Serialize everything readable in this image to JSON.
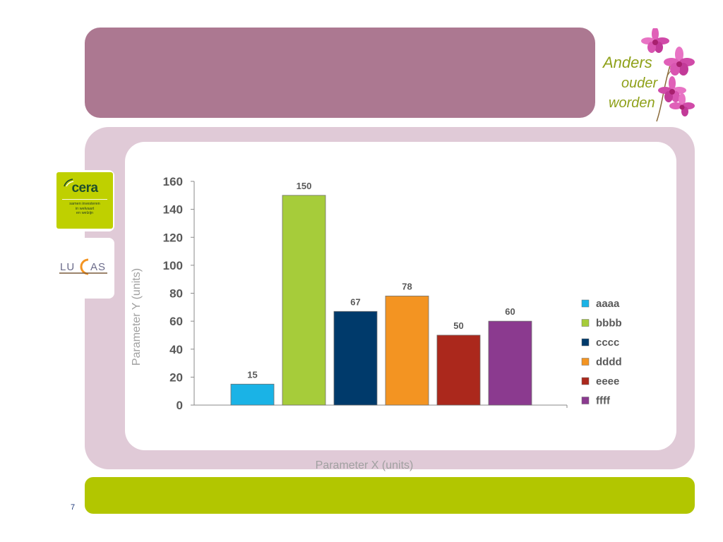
{
  "slide": {
    "page_number": "7",
    "title_band_color": "#ac7891",
    "footer_band_color": "#b2c600",
    "frame_color": "#e0cad7"
  },
  "logos": {
    "anders": {
      "line1": "Anders",
      "line2": "ouder",
      "line3": "worden",
      "icon": "orchid-flower"
    },
    "cera": {
      "name": "cera",
      "tagline_1": "samen investeren",
      "tagline_2": "in welvaart",
      "tagline_3": "en welzijn",
      "background": "#bfd000"
    },
    "lucas": {
      "text_left": "LU",
      "text_right": "AS"
    }
  },
  "chart_data": {
    "type": "bar",
    "categories": [
      "aaaa",
      "bbbb",
      "cccc",
      "dddd",
      "eeee",
      "ffff"
    ],
    "values": [
      15,
      150,
      67,
      78,
      50,
      60
    ],
    "colors": [
      "#1ab3e6",
      "#a6cc3a",
      "#003a6b",
      "#f39422",
      "#ab281c",
      "#8b3a8f"
    ],
    "data_labels": [
      "15",
      "150",
      "67",
      "78",
      "50",
      "60"
    ],
    "xlabel": "Parameter X (units)",
    "ylabel": "Parameter Y (units)",
    "ylim": [
      0,
      160
    ],
    "yticks": [
      0,
      20,
      40,
      60,
      80,
      100,
      120,
      140,
      160
    ],
    "ytick_labels": [
      "0",
      "20",
      "40",
      "60",
      "80",
      "100",
      "120",
      "140",
      "160"
    ],
    "legend": [
      "aaaa",
      "bbbb",
      "cccc",
      "dddd",
      "eeee",
      "ffff"
    ],
    "legend_position": "right",
    "grid": false
  }
}
